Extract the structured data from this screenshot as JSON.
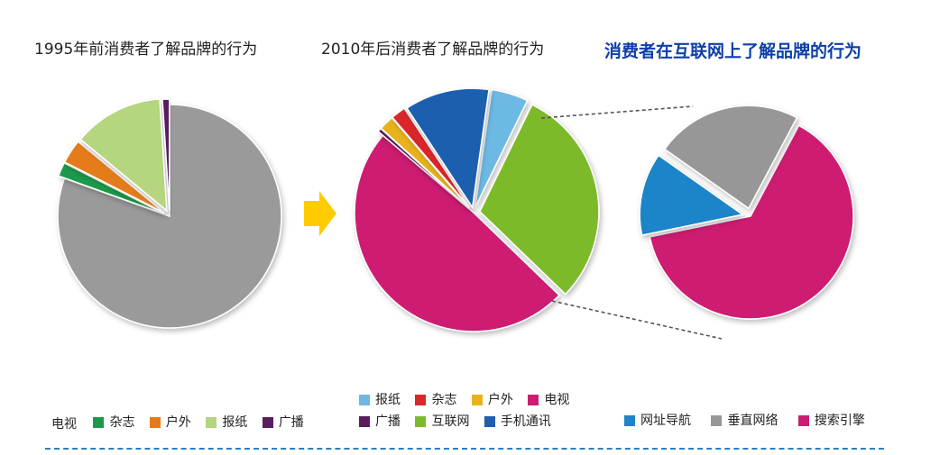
{
  "titles": {
    "left": "1995年前消费者了解品牌的行为",
    "middle": "2010年后消费者了解品牌的行为",
    "right": "消费者在互联网上了解品牌的行为"
  },
  "colors": {
    "tv": "#9a9a9a",
    "magazine": "#1b9a4a",
    "outdoor": "#e47b1e",
    "newspaper": "#b5d57e",
    "broadcast": "#5a1e5e",
    "newspaper_2010": "#6cb9e3",
    "magazine_2010": "#d8282b",
    "outdoor_2010": "#e8b21a",
    "tv_2010": "#cd1d72",
    "internet": "#7dba2c",
    "mobile": "#1f5fae",
    "nav": "#1f84c8",
    "vertical": "#979797",
    "search": "#cd1d72",
    "arrow": "#ffcc00",
    "connector": "#555555"
  },
  "legends": {
    "left": {
      "plain_label": "电视",
      "items": [
        {
          "label": "杂志",
          "color": "#1b9a4a"
        },
        {
          "label": "户外",
          "color": "#e47b1e"
        },
        {
          "label": "报纸",
          "color": "#b5d57e"
        },
        {
          "label": "广播",
          "color": "#5a1e5e"
        }
      ]
    },
    "middle_row1": [
      {
        "label": "报纸",
        "color": "#6cb9e3"
      },
      {
        "label": "杂志",
        "color": "#d8282b"
      },
      {
        "label": "户外",
        "color": "#e8b21a"
      },
      {
        "label": "电视",
        "color": "#cd1d72"
      }
    ],
    "middle_row2": [
      {
        "label": "广播",
        "color": "#5a1e5e"
      },
      {
        "label": "互联网",
        "color": "#7dba2c"
      },
      {
        "label": "手机通讯",
        "color": "#1f5fae"
      }
    ],
    "right": [
      {
        "label": "网址导航",
        "color": "#1f84c8"
      },
      {
        "label": "垂直网络",
        "color": "#979797"
      },
      {
        "label": "搜索引擎",
        "color": "#cd1d72"
      }
    ]
  },
  "chart_data": [
    {
      "type": "pie",
      "title": "1995年前消费者了解品牌的行为",
      "series": [
        {
          "name": "电视",
          "value": 80.5,
          "color": "#9a9a9a"
        },
        {
          "name": "杂志",
          "value": 2.0,
          "color": "#1b9a4a"
        },
        {
          "name": "户外",
          "value": 3.5,
          "color": "#e47b1e"
        },
        {
          "name": "报纸",
          "value": 13.0,
          "color": "#b5d57e"
        },
        {
          "name": "广播",
          "value": 1.0,
          "color": "#5a1e5e"
        }
      ]
    },
    {
      "type": "pie",
      "title": "2010年后消费者了解品牌的行为",
      "series": [
        {
          "name": "报纸",
          "value": 5.0,
          "color": "#6cb9e3"
        },
        {
          "name": "互联网",
          "value": 30.0,
          "color": "#7dba2c"
        },
        {
          "name": "电视",
          "value": 49.0,
          "color": "#cd1d72"
        },
        {
          "name": "广播",
          "value": 0.5,
          "color": "#5a1e5e"
        },
        {
          "name": "户外",
          "value": 2.0,
          "color": "#e8b21a"
        },
        {
          "name": "杂志",
          "value": 2.0,
          "color": "#d8282b"
        },
        {
          "name": "手机通讯",
          "value": 11.5,
          "color": "#1f5fae"
        }
      ]
    },
    {
      "type": "pie",
      "title": "消费者在互联网上了解品牌的行为",
      "series": [
        {
          "name": "搜索引擎",
          "value": 64.0,
          "color": "#cd1d72"
        },
        {
          "name": "网址导航",
          "value": 13.0,
          "color": "#1f84c8"
        },
        {
          "name": "垂直网络",
          "value": 23.0,
          "color": "#979797"
        }
      ]
    }
  ]
}
